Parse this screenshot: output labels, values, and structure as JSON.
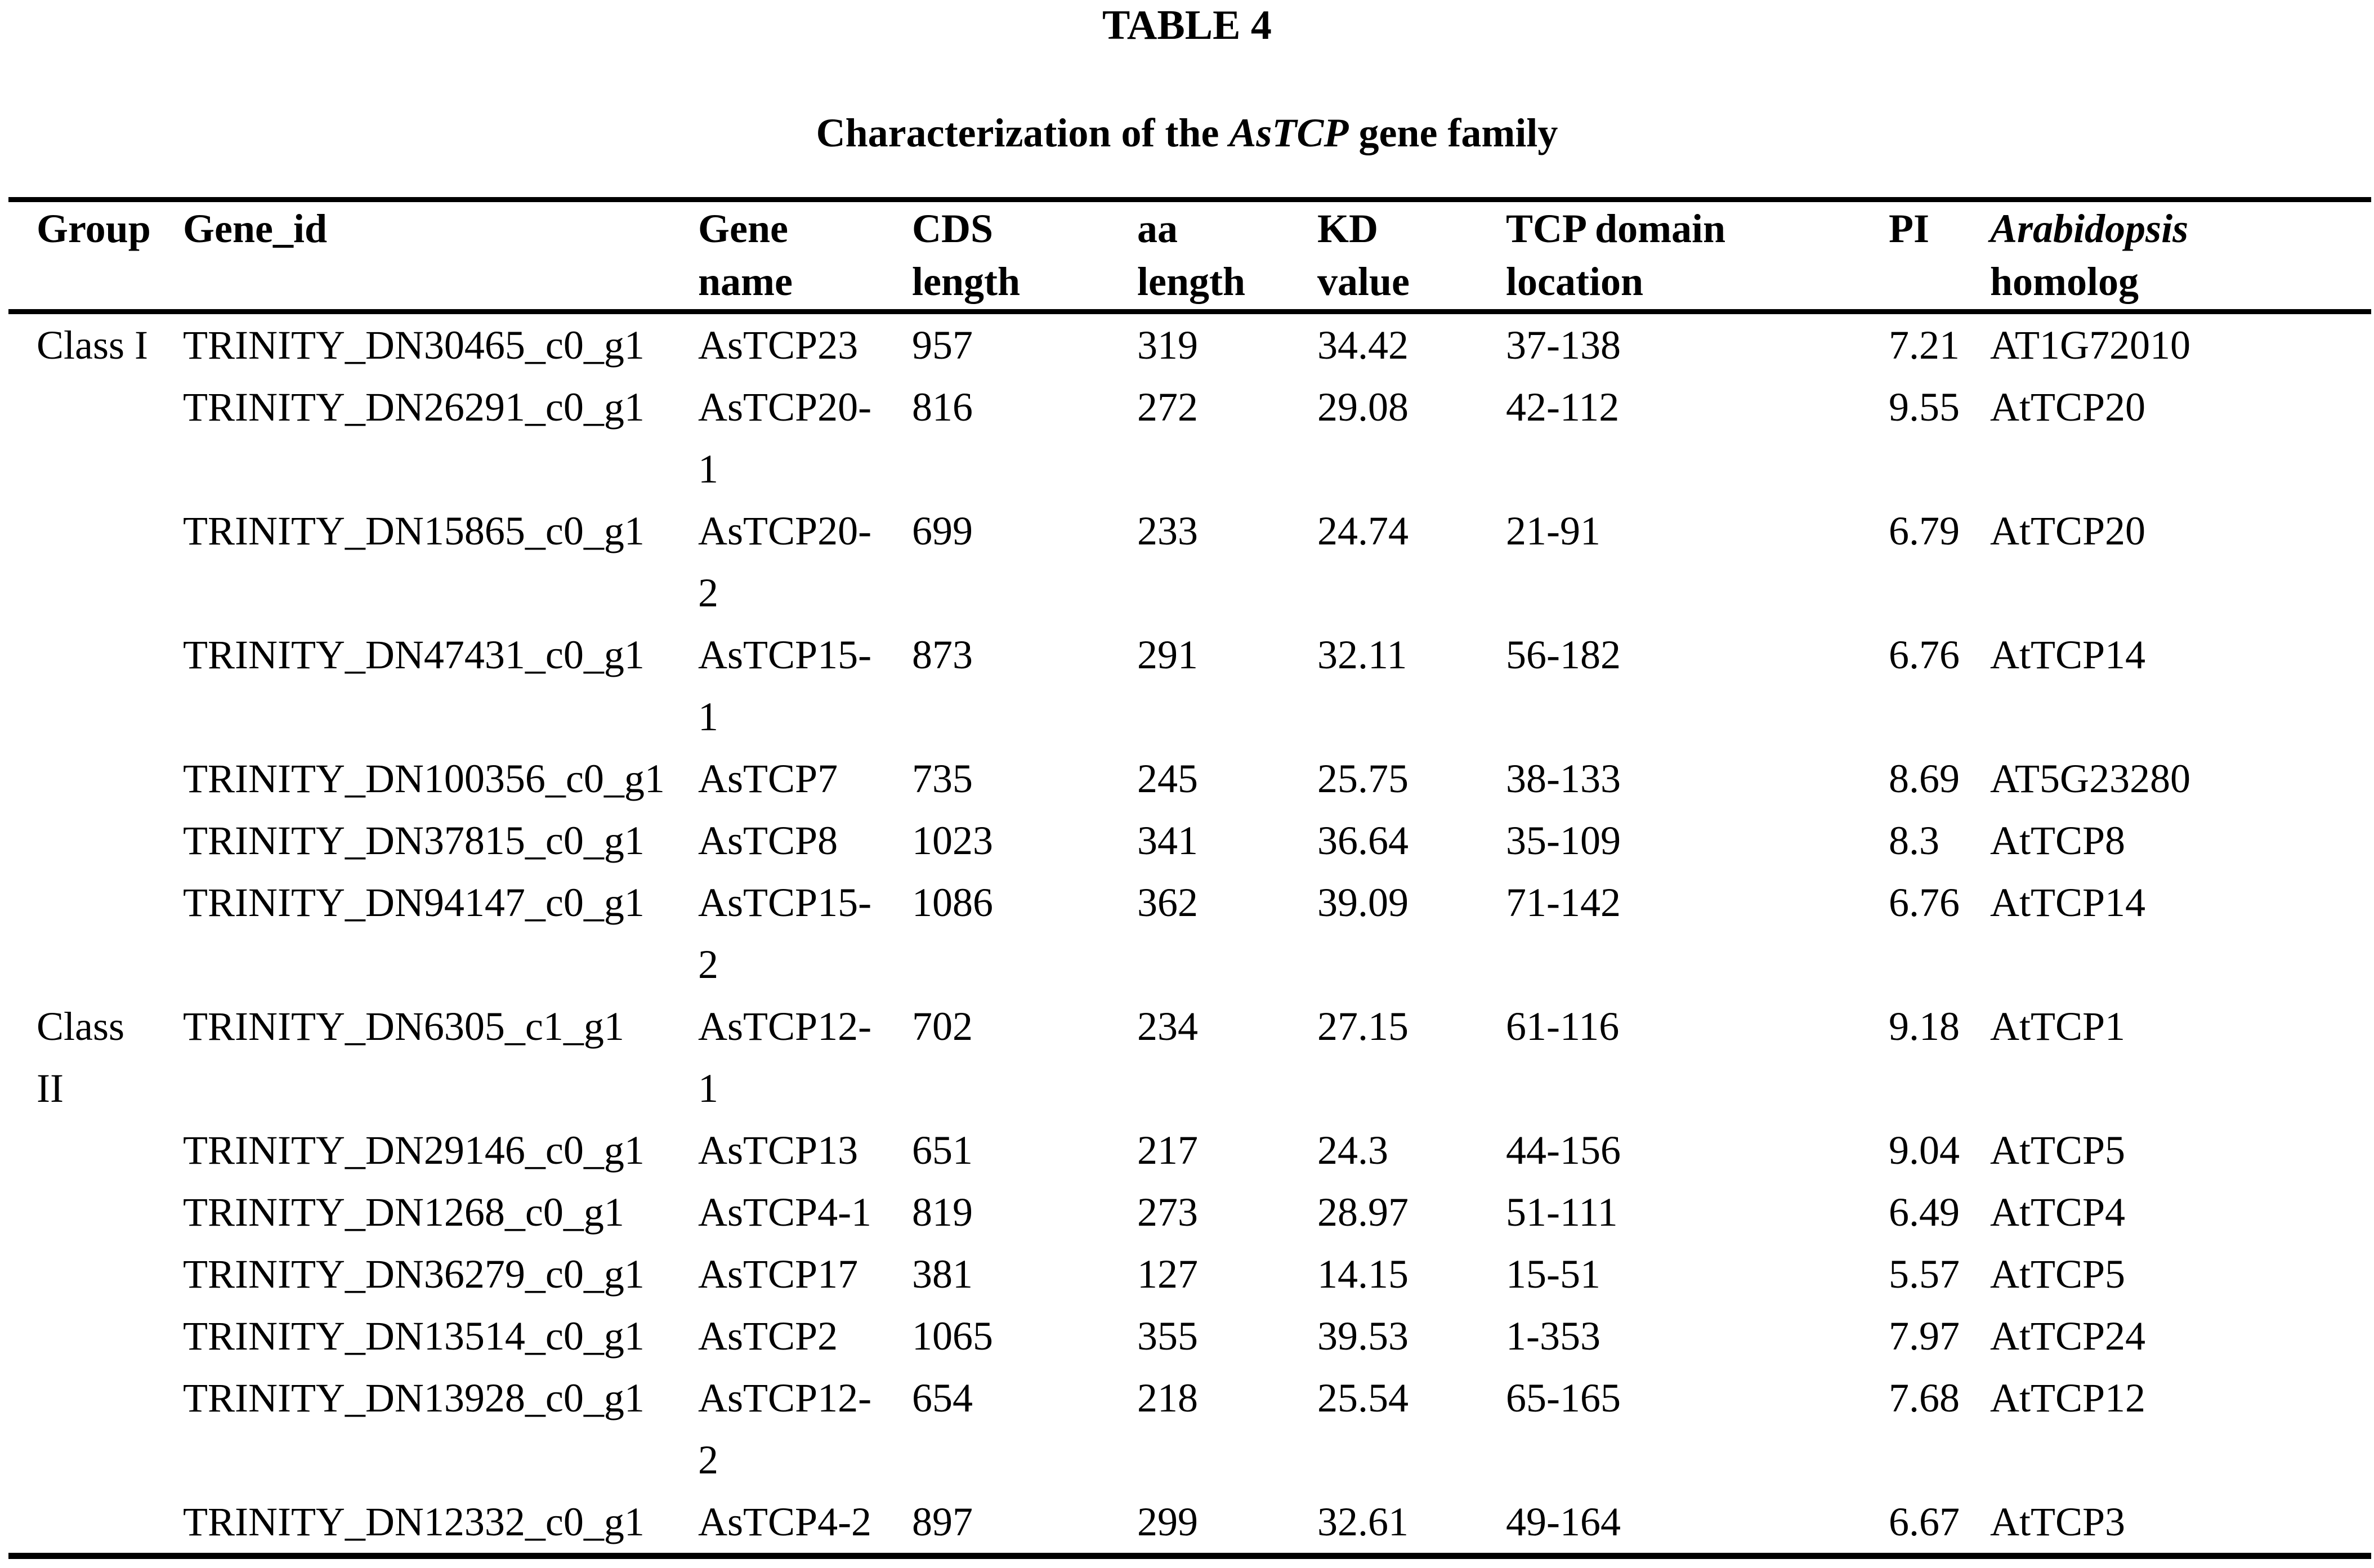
{
  "title": "TABLE 4",
  "subtitle": {
    "prefix": "Characterization of the ",
    "italic": "AsTCP",
    "suffix": " gene family"
  },
  "table": {
    "columns": [
      {
        "key": "group",
        "label": "Group"
      },
      {
        "key": "gene_id",
        "label": "Gene_id"
      },
      {
        "key": "gene_name",
        "label": "Gene name"
      },
      {
        "key": "cds_length",
        "label": "CDS length"
      },
      {
        "key": "aa_length",
        "label": "aa length"
      },
      {
        "key": "kd_value",
        "label": "KD value"
      },
      {
        "key": "tcp_domain_location",
        "label": "TCP domain location"
      },
      {
        "key": "pi",
        "label": "PI"
      },
      {
        "key": "arabidopsis_homolog",
        "label_italic": "Arabidopsis",
        "label_rest": "homolog"
      }
    ],
    "rows": [
      {
        "group": "Class I",
        "gene_id": "TRINITY_DN30465_c0_g1",
        "gene_name": "AsTCP23",
        "cds_length": "957",
        "aa_length": "319",
        "kd_value": "34.42",
        "tcp_domain_location": "37-138",
        "pi": "7.21",
        "arabidopsis_homolog": "AT1G72010"
      },
      {
        "group": "",
        "gene_id": "TRINITY_DN26291_c0_g1",
        "gene_name": "AsTCP20-1",
        "cds_length": "816",
        "aa_length": "272",
        "kd_value": "29.08",
        "tcp_domain_location": "42-112",
        "pi": "9.55",
        "arabidopsis_homolog": "AtTCP20"
      },
      {
        "group": "",
        "gene_id": "TRINITY_DN15865_c0_g1",
        "gene_name": "AsTCP20-2",
        "cds_length": "699",
        "aa_length": "233",
        "kd_value": "24.74",
        "tcp_domain_location": "21-91",
        "pi": "6.79",
        "arabidopsis_homolog": "AtTCP20"
      },
      {
        "group": "",
        "gene_id": "TRINITY_DN47431_c0_g1",
        "gene_name": "AsTCP15-1",
        "cds_length": "873",
        "aa_length": "291",
        "kd_value": "32.11",
        "tcp_domain_location": "56-182",
        "pi": "6.76",
        "arabidopsis_homolog": "AtTCP14"
      },
      {
        "group": "",
        "gene_id": "TRINITY_DN100356_c0_g1",
        "gene_name": "AsTCP7",
        "cds_length": "735",
        "aa_length": "245",
        "kd_value": "25.75",
        "tcp_domain_location": "38-133",
        "pi": "8.69",
        "arabidopsis_homolog": "AT5G23280"
      },
      {
        "group": "",
        "gene_id": "TRINITY_DN37815_c0_g1",
        "gene_name": "AsTCP8",
        "cds_length": "1023",
        "aa_length": "341",
        "kd_value": "36.64",
        "tcp_domain_location": "35-109",
        "pi": "8.3",
        "arabidopsis_homolog": "AtTCP8"
      },
      {
        "group": "",
        "gene_id": "TRINITY_DN94147_c0_g1",
        "gene_name": "AsTCP15-2",
        "cds_length": "1086",
        "aa_length": "362",
        "kd_value": "39.09",
        "tcp_domain_location": "71-142",
        "pi": "6.76",
        "arabidopsis_homolog": "AtTCP14"
      },
      {
        "group": "Class II",
        "gene_id": "TRINITY_DN6305_c1_g1",
        "gene_name": "AsTCP12-1",
        "cds_length": "702",
        "aa_length": "234",
        "kd_value": "27.15",
        "tcp_domain_location": "61-116",
        "pi": "9.18",
        "arabidopsis_homolog": "AtTCP1"
      },
      {
        "group": "",
        "gene_id": "TRINITY_DN29146_c0_g1",
        "gene_name": "AsTCP13",
        "cds_length": "651",
        "aa_length": "217",
        "kd_value": "24.3",
        "tcp_domain_location": "44-156",
        "pi": "9.04",
        "arabidopsis_homolog": "AtTCP5"
      },
      {
        "group": "",
        "gene_id": "TRINITY_DN1268_c0_g1",
        "gene_name": "AsTCP4-1",
        "cds_length": "819",
        "aa_length": "273",
        "kd_value": "28.97",
        "tcp_domain_location": "51-111",
        "pi": "6.49",
        "arabidopsis_homolog": "AtTCP4"
      },
      {
        "group": "",
        "gene_id": "TRINITY_DN36279_c0_g1",
        "gene_name": "AsTCP17",
        "cds_length": "381",
        "aa_length": "127",
        "kd_value": "14.15",
        "tcp_domain_location": "15-51",
        "pi": "5.57",
        "arabidopsis_homolog": "AtTCP5"
      },
      {
        "group": "",
        "gene_id": "TRINITY_DN13514_c0_g1",
        "gene_name": "AsTCP2",
        "cds_length": "1065",
        "aa_length": "355",
        "kd_value": "39.53",
        "tcp_domain_location": "1-353",
        "pi": "7.97",
        "arabidopsis_homolog": "AtTCP24"
      },
      {
        "group": "",
        "gene_id": "TRINITY_DN13928_c0_g1",
        "gene_name": "AsTCP12-2",
        "cds_length": "654",
        "aa_length": "218",
        "kd_value": "25.54",
        "tcp_domain_location": "65-165",
        "pi": "7.68",
        "arabidopsis_homolog": "AtTCP12"
      },
      {
        "group": "",
        "gene_id": "TRINITY_DN12332_c0_g1",
        "gene_name": "AsTCP4-2",
        "cds_length": "897",
        "aa_length": "299",
        "kd_value": "32.61",
        "tcp_domain_location": "49-164",
        "pi": "6.67",
        "arabidopsis_homolog": "AtTCP3"
      }
    ]
  }
}
